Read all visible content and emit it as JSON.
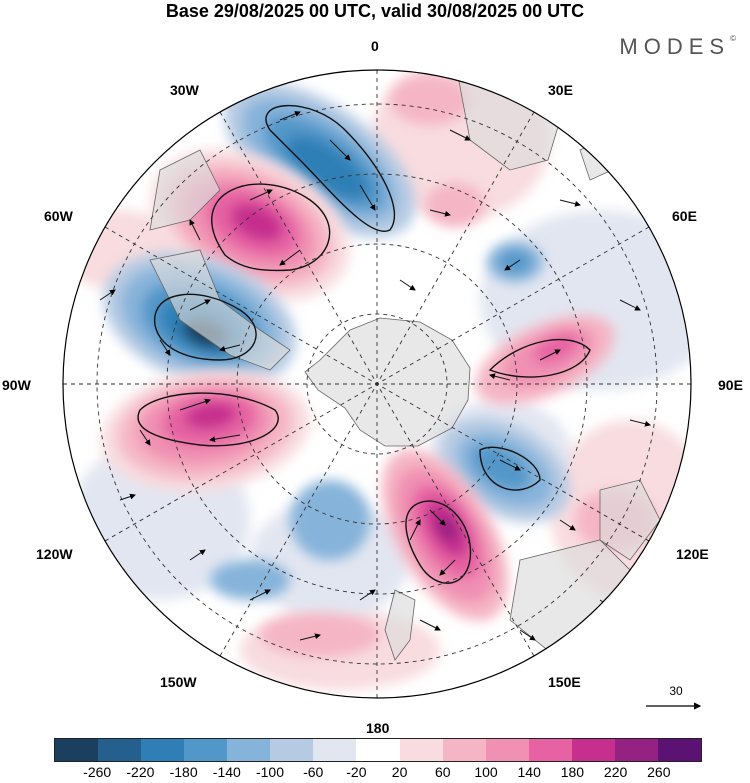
{
  "title": "Base 29/08/2025 00 UTC, valid 30/08/2025 00 UTC",
  "brand": "MODES",
  "brand_mark": "©",
  "longitude_labels": {
    "lon_0": "0",
    "lon_30e": "30E",
    "lon_60e": "60E",
    "lon_90e": "90E",
    "lon_120e": "120E",
    "lon_150e": "150E",
    "lon_180": "180",
    "lon_150w": "150W",
    "lon_120w": "120W",
    "lon_90w": "90W",
    "lon_60w": "60W",
    "lon_30w": "30W"
  },
  "reference_vector": "30",
  "colorbar": {
    "colors": [
      "#1a3f5f",
      "#245f8e",
      "#2f7fb6",
      "#5297c9",
      "#86b3da",
      "#b6cbe3",
      "#e2e6f1",
      "#ffffff",
      "#f8dcdf",
      "#f5b5c4",
      "#f090b3",
      "#e662a3",
      "#c62f8e",
      "#952282",
      "#5c1272"
    ],
    "ticks": [
      "-260",
      "-220",
      "-180",
      "-140",
      "-100",
      "-60",
      "-20",
      "20",
      "60",
      "100",
      "140",
      "180",
      "220",
      "260"
    ]
  },
  "anomaly_colors": {
    "blue_deep": "#1a3f5f",
    "blue_strong": "#2f7fb6",
    "blue_mid": "#5297c9",
    "blue_light": "#86b3da",
    "blue_pale": "#b6cbe3",
    "blue_faint": "#e2e6f1",
    "pink_faint": "#f8dcdf",
    "pink_light": "#f5b5c4",
    "pink_mid": "#f090b3",
    "pink_strong": "#e662a3",
    "magenta": "#c62f8e",
    "purple": "#952282",
    "land_grey": "#dcdcdc"
  }
}
